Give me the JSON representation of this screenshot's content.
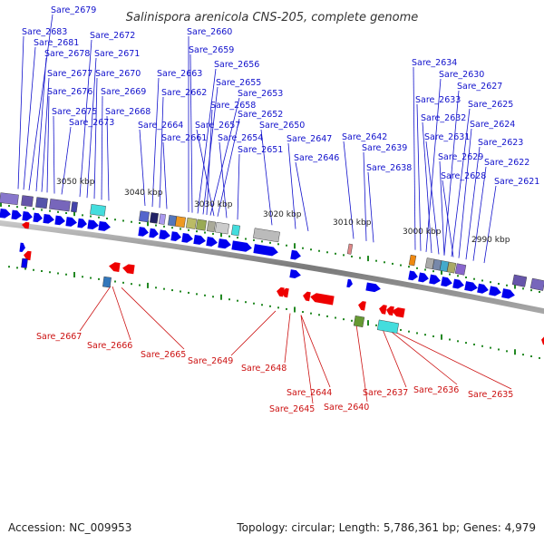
{
  "title": "Salinispora arenicola CNS-205, complete genome",
  "footer": {
    "accession": "Accession: NC_009953",
    "summary": "Topology: circular; Length: 5,786,361 bp; Genes: 4,979"
  },
  "kbp_labels": [
    "3050 kbp",
    "3040 kbp",
    "3030 kbp",
    "3020 kbp",
    "3010 kbp",
    "3000 kbp",
    "2990 kbp"
  ],
  "forward_genes": [
    "Sare_2679",
    "Sare_2683",
    "Sare_2681",
    "Sare_2678",
    "Sare_2677",
    "Sare_2676",
    "Sare_2675",
    "Sare_2673",
    "Sare_2672",
    "Sare_2671",
    "Sare_2670",
    "Sare_2669",
    "Sare_2668",
    "Sare_2660",
    "Sare_2659",
    "Sare_2656",
    "Sare_2663",
    "Sare_2655",
    "Sare_2662",
    "Sare_2653",
    "Sare_2658",
    "Sare_2652",
    "Sare_2664",
    "Sare_2657",
    "Sare_2650",
    "Sare_2661",
    "Sare_2654",
    "Sare_2647",
    "Sare_2651",
    "Sare_2646",
    "Sare_2642",
    "Sare_2639",
    "Sare_2638",
    "Sare_2634",
    "Sare_2630",
    "Sare_2627",
    "Sare_2633",
    "Sare_2625",
    "Sare_2632",
    "Sare_2624",
    "Sare_2631",
    "Sare_2623",
    "Sare_2629",
    "Sare_2622",
    "Sare_2628",
    "Sare_2621"
  ],
  "reverse_genes": [
    "Sare_2667",
    "Sare_2666",
    "Sare_2665",
    "Sare_2649",
    "Sare_2648",
    "Sare_2644",
    "Sare_2645",
    "Sare_2640",
    "Sare_2637",
    "Sare_2636",
    "Sare_2635"
  ],
  "colors": {
    "forward_gene": "#0000ee",
    "reverse_gene": "#ee0000",
    "forward_label": "#1111cc",
    "reverse_label": "#cc1111",
    "backbone": "#888888",
    "tick": "#228822"
  }
}
